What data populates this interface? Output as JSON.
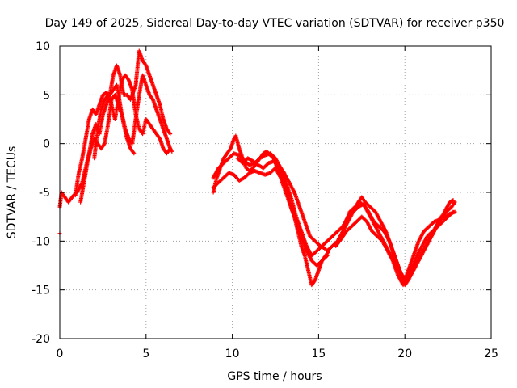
{
  "chart_data": {
    "type": "scatter",
    "title": "Day 149 of 2025, Sidereal Day-to-day VTEC variation (SDTVAR) for receiver p350",
    "xlabel": "GPS time / hours",
    "ylabel": "SDTVAR / TECUs",
    "xlim": [
      0,
      25
    ],
    "ylim": [
      -20,
      10
    ],
    "xticks": [
      0,
      5,
      10,
      15,
      20,
      25
    ],
    "yticks": [
      -20,
      -15,
      -10,
      -5,
      0,
      5,
      10
    ],
    "grid": true,
    "marker": "+",
    "color": "#ff0000",
    "series": [
      {
        "points": [
          [
            0,
            -6.5
          ],
          [
            0.1,
            -5.0
          ],
          [
            0.3,
            -5.5
          ],
          [
            0.5,
            -6.0
          ],
          [
            0.8,
            -5.3
          ],
          [
            1.0,
            -5.0
          ],
          [
            1.3,
            -4.0
          ],
          [
            1.5,
            -2.5
          ],
          [
            1.7,
            -1.0
          ],
          [
            1.9,
            1.0
          ],
          [
            2.1,
            2.0
          ],
          [
            2.3,
            1.0
          ],
          [
            2.5,
            3.0
          ],
          [
            2.7,
            4.0
          ],
          [
            2.9,
            5.0
          ],
          [
            3.1,
            5.5
          ],
          [
            3.3,
            6.0
          ],
          [
            3.5,
            4.0
          ],
          [
            3.7,
            2.0
          ],
          [
            3.9,
            0.5
          ],
          [
            4.1,
            -0.5
          ],
          [
            4.3,
            -1.0
          ]
        ]
      },
      {
        "points": [
          [
            0.9,
            -5.3
          ],
          [
            1.1,
            -3.0
          ],
          [
            1.3,
            -1.5
          ],
          [
            1.5,
            0.5
          ],
          [
            1.7,
            2.5
          ],
          [
            1.9,
            3.5
          ],
          [
            2.1,
            3.0
          ],
          [
            2.3,
            4.0
          ],
          [
            2.5,
            5.0
          ],
          [
            2.7,
            5.2
          ],
          [
            2.9,
            5.0
          ],
          [
            3.1,
            7.0
          ],
          [
            3.3,
            8.0
          ],
          [
            3.5,
            7.0
          ],
          [
            3.7,
            5.0
          ],
          [
            3.9,
            5.0
          ],
          [
            4.1,
            4.5
          ],
          [
            4.4,
            6.0
          ],
          [
            4.6,
            9.5
          ],
          [
            4.8,
            8.5
          ],
          [
            5.0,
            8.0
          ],
          [
            5.2,
            7.0
          ],
          [
            5.4,
            6.0
          ],
          [
            5.6,
            5.0
          ],
          [
            5.8,
            4.0
          ],
          [
            6.0,
            2.5
          ],
          [
            6.2,
            1.5
          ],
          [
            6.4,
            1.0
          ]
        ]
      },
      {
        "points": [
          [
            1.2,
            -6.0
          ],
          [
            1.4,
            -4.0
          ],
          [
            1.6,
            -2.0
          ],
          [
            1.8,
            -0.5
          ],
          [
            2.0,
            0.5
          ],
          [
            2.2,
            0.0
          ],
          [
            2.4,
            -0.5
          ],
          [
            2.6,
            0.0
          ],
          [
            2.8,
            2.0
          ],
          [
            3.0,
            4.5
          ],
          [
            3.2,
            5.0
          ],
          [
            3.4,
            4.0
          ],
          [
            3.6,
            3.0
          ],
          [
            3.8,
            1.5
          ],
          [
            4.0,
            0.5
          ],
          [
            4.2,
            0.0
          ],
          [
            4.4,
            2.5
          ],
          [
            4.6,
            5.0
          ],
          [
            4.8,
            7.0
          ],
          [
            5.0,
            6.0
          ],
          [
            5.2,
            5.0
          ],
          [
            5.4,
            4.5
          ],
          [
            5.6,
            3.5
          ],
          [
            5.8,
            2.5
          ],
          [
            6.0,
            1.5
          ],
          [
            6.2,
            0.5
          ],
          [
            6.4,
            -0.5
          ],
          [
            6.5,
            -0.8
          ]
        ]
      },
      {
        "points": [
          [
            2.0,
            -1.5
          ],
          [
            2.2,
            1.5
          ],
          [
            2.4,
            3.5
          ],
          [
            2.6,
            4.5
          ],
          [
            2.8,
            5.0
          ],
          [
            3.0,
            4.0
          ],
          [
            3.2,
            2.5
          ],
          [
            3.4,
            4.5
          ],
          [
            3.6,
            6.5
          ],
          [
            3.8,
            7.0
          ],
          [
            4.0,
            6.5
          ],
          [
            4.2,
            5.5
          ],
          [
            4.4,
            3.0
          ],
          [
            4.6,
            1.5
          ],
          [
            4.8,
            1.0
          ],
          [
            5.0,
            2.5
          ],
          [
            5.2,
            2.0
          ],
          [
            5.4,
            1.5
          ],
          [
            5.6,
            1.0
          ],
          [
            5.8,
            0.5
          ],
          [
            6.0,
            -0.5
          ],
          [
            6.2,
            -1.0
          ],
          [
            6.4,
            -0.5
          ]
        ]
      },
      {
        "points": [
          [
            0,
            -9.2
          ]
        ]
      },
      {
        "points": [
          [
            8.9,
            -5.0
          ],
          [
            9.1,
            -3.5
          ],
          [
            9.3,
            -2.5
          ],
          [
            9.5,
            -1.5
          ],
          [
            9.7,
            -1.0
          ],
          [
            9.9,
            -0.5
          ],
          [
            10.1,
            0.5
          ],
          [
            10.2,
            0.8
          ],
          [
            10.4,
            -0.5
          ],
          [
            10.6,
            -1.5
          ],
          [
            10.8,
            -2.5
          ],
          [
            11.0,
            -2.8
          ],
          [
            11.2,
            -2.5
          ],
          [
            11.4,
            -2.0
          ],
          [
            11.6,
            -1.5
          ],
          [
            11.8,
            -1.0
          ],
          [
            12.0,
            -0.8
          ],
          [
            12.2,
            -1.2
          ],
          [
            12.4,
            -1.5
          ],
          [
            12.6,
            -2.5
          ],
          [
            12.8,
            -3.0
          ],
          [
            13.0,
            -4.0
          ],
          [
            13.2,
            -5.0
          ],
          [
            13.4,
            -6.5
          ],
          [
            13.6,
            -7.5
          ],
          [
            13.8,
            -9.0
          ],
          [
            14.0,
            -10.5
          ],
          [
            14.2,
            -11.5
          ],
          [
            14.4,
            -13.0
          ],
          [
            14.6,
            -14.5
          ],
          [
            14.8,
            -14.0
          ],
          [
            15.0,
            -13.0
          ],
          [
            15.2,
            -12.0
          ],
          [
            15.4,
            -11.5
          ],
          [
            15.6,
            -11.0
          ]
        ]
      },
      {
        "points": [
          [
            8.9,
            -3.5
          ],
          [
            9.2,
            -2.5
          ],
          [
            9.5,
            -2.0
          ],
          [
            9.8,
            -1.5
          ],
          [
            10.1,
            -1.0
          ],
          [
            10.4,
            -1.2
          ],
          [
            10.7,
            -1.8
          ],
          [
            11.0,
            -2.2
          ],
          [
            11.3,
            -2.0
          ],
          [
            11.6,
            -1.5
          ],
          [
            11.9,
            -1.2
          ],
          [
            12.2,
            -1.0
          ],
          [
            12.5,
            -1.5
          ],
          [
            12.8,
            -2.5
          ],
          [
            13.1,
            -4.0
          ],
          [
            13.4,
            -5.5
          ],
          [
            13.7,
            -7.5
          ],
          [
            14.0,
            -9.0
          ],
          [
            14.3,
            -10.5
          ],
          [
            14.6,
            -11.5
          ],
          [
            14.9,
            -11.0
          ],
          [
            15.2,
            -10.5
          ],
          [
            15.5,
            -10.0
          ]
        ]
      },
      {
        "points": [
          [
            8.9,
            -4.5
          ],
          [
            9.2,
            -4.0
          ],
          [
            9.5,
            -3.5
          ],
          [
            9.8,
            -3.0
          ],
          [
            10.1,
            -3.2
          ],
          [
            10.4,
            -3.8
          ],
          [
            10.7,
            -3.5
          ],
          [
            11.0,
            -3.0
          ],
          [
            11.3,
            -2.8
          ],
          [
            11.6,
            -3.0
          ],
          [
            11.9,
            -3.2
          ],
          [
            12.2,
            -3.0
          ],
          [
            12.5,
            -2.5
          ],
          [
            12.8,
            -3.5
          ],
          [
            13.1,
            -5.0
          ],
          [
            13.4,
            -6.5
          ],
          [
            13.7,
            -8.0
          ],
          [
            14.0,
            -9.5
          ],
          [
            14.3,
            -11.0
          ],
          [
            14.6,
            -12.0
          ],
          [
            14.9,
            -12.5
          ],
          [
            15.2,
            -12.0
          ],
          [
            15.5,
            -11.5
          ]
        ]
      },
      {
        "points": [
          [
            10.3,
            -1.5
          ],
          [
            10.6,
            -2.0
          ],
          [
            10.9,
            -1.5
          ],
          [
            11.2,
            -1.8
          ],
          [
            11.5,
            -2.2
          ],
          [
            11.8,
            -2.5
          ],
          [
            12.1,
            -2.0
          ],
          [
            12.4,
            -1.8
          ],
          [
            12.7,
            -2.2
          ],
          [
            13.0,
            -3.0
          ],
          [
            13.3,
            -4.0
          ],
          [
            13.6,
            -5.0
          ],
          [
            13.9,
            -6.5
          ],
          [
            14.2,
            -8.0
          ],
          [
            14.5,
            -9.5
          ],
          [
            14.8,
            -10.0
          ],
          [
            15.1,
            -10.5
          ],
          [
            15.4,
            -10.8
          ]
        ]
      },
      {
        "points": [
          [
            15.5,
            -11.0
          ],
          [
            15.8,
            -10.5
          ],
          [
            16.1,
            -10.0
          ],
          [
            16.4,
            -9.0
          ],
          [
            16.7,
            -8.0
          ],
          [
            17.0,
            -7.0
          ],
          [
            17.3,
            -6.0
          ],
          [
            17.5,
            -5.5
          ],
          [
            17.7,
            -6.0
          ],
          [
            18.0,
            -6.5
          ],
          [
            18.3,
            -7.0
          ],
          [
            18.6,
            -8.0
          ],
          [
            18.9,
            -9.0
          ],
          [
            19.2,
            -10.5
          ],
          [
            19.5,
            -12.0
          ],
          [
            19.8,
            -13.5
          ],
          [
            20.0,
            -14.5
          ],
          [
            20.2,
            -14.0
          ],
          [
            20.5,
            -13.0
          ],
          [
            20.8,
            -12.0
          ],
          [
            21.1,
            -11.0
          ],
          [
            21.4,
            -10.0
          ],
          [
            21.7,
            -9.0
          ],
          [
            22.0,
            -8.0
          ],
          [
            22.3,
            -7.0
          ],
          [
            22.6,
            -6.0
          ],
          [
            22.8,
            -5.8
          ]
        ]
      },
      {
        "points": [
          [
            15.5,
            -10.0
          ],
          [
            15.8,
            -9.5
          ],
          [
            16.1,
            -9.0
          ],
          [
            16.4,
            -8.5
          ],
          [
            16.7,
            -7.5
          ],
          [
            17.0,
            -7.0
          ],
          [
            17.3,
            -6.5
          ],
          [
            17.6,
            -6.2
          ],
          [
            17.9,
            -7.0
          ],
          [
            18.2,
            -8.0
          ],
          [
            18.5,
            -8.5
          ],
          [
            18.8,
            -9.0
          ],
          [
            19.1,
            -10.0
          ],
          [
            19.4,
            -11.5
          ],
          [
            19.7,
            -13.0
          ],
          [
            20.0,
            -14.0
          ],
          [
            20.3,
            -13.5
          ],
          [
            20.6,
            -12.5
          ],
          [
            20.9,
            -11.5
          ],
          [
            21.2,
            -10.5
          ],
          [
            21.5,
            -9.5
          ],
          [
            21.8,
            -8.5
          ],
          [
            22.1,
            -7.5
          ],
          [
            22.4,
            -7.0
          ],
          [
            22.7,
            -6.5
          ],
          [
            22.9,
            -6.0
          ]
        ]
      },
      {
        "points": [
          [
            16.0,
            -10.5
          ],
          [
            16.3,
            -9.8
          ],
          [
            16.6,
            -9.0
          ],
          [
            16.9,
            -8.5
          ],
          [
            17.2,
            -8.0
          ],
          [
            17.5,
            -7.5
          ],
          [
            17.8,
            -8.0
          ],
          [
            18.1,
            -9.0
          ],
          [
            18.4,
            -9.5
          ],
          [
            18.7,
            -10.0
          ],
          [
            19.0,
            -11.0
          ],
          [
            19.3,
            -12.0
          ],
          [
            19.6,
            -13.5
          ],
          [
            19.9,
            -14.5
          ],
          [
            20.2,
            -13.0
          ],
          [
            20.5,
            -11.5
          ],
          [
            20.8,
            -10.0
          ],
          [
            21.1,
            -9.0
          ],
          [
            21.4,
            -8.5
          ],
          [
            21.7,
            -8.0
          ],
          [
            22.0,
            -7.8
          ],
          [
            22.3,
            -7.5
          ],
          [
            22.6,
            -7.2
          ],
          [
            22.9,
            -7.0
          ]
        ]
      },
      {
        "points": [
          [
            16.5,
            -8.5
          ],
          [
            16.8,
            -7.0
          ],
          [
            17.1,
            -6.5
          ],
          [
            17.4,
            -6.0
          ],
          [
            17.7,
            -6.5
          ],
          [
            18.0,
            -7.5
          ],
          [
            18.3,
            -8.5
          ],
          [
            18.6,
            -9.5
          ],
          [
            18.9,
            -10.5
          ],
          [
            19.2,
            -11.5
          ],
          [
            19.5,
            -12.5
          ],
          [
            19.8,
            -13.5
          ],
          [
            20.1,
            -13.8
          ],
          [
            20.4,
            -12.8
          ],
          [
            20.7,
            -11.5
          ],
          [
            21.0,
            -10.5
          ],
          [
            21.3,
            -9.5
          ],
          [
            21.6,
            -9.0
          ],
          [
            21.9,
            -8.5
          ],
          [
            22.2,
            -8.0
          ],
          [
            22.5,
            -7.5
          ],
          [
            22.8,
            -7.0
          ]
        ]
      }
    ]
  }
}
